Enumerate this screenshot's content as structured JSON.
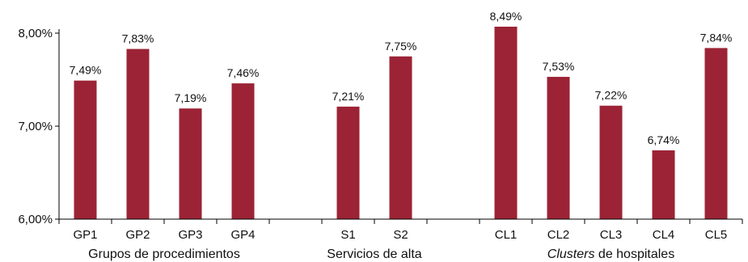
{
  "chart_data": {
    "type": "bar",
    "title": "",
    "xlabel": "",
    "ylabel": "",
    "ylim": [
      6.0,
      8.0
    ],
    "yticks": [
      "6,00%",
      "7,00%",
      "8,00%"
    ],
    "ytick_values": [
      6.0,
      7.0,
      8.0
    ],
    "grid": false,
    "bar_color": "#9B2335",
    "slots": [
      "GP1",
      "GP2",
      "GP3",
      "GP4",
      "",
      "S1",
      "S2",
      "",
      "CL1",
      "CL2",
      "CL3",
      "CL4",
      "CL5"
    ],
    "categories": [
      "GP1",
      "GP2",
      "GP3",
      "GP4",
      "S1",
      "S2",
      "CL1",
      "CL2",
      "CL3",
      "CL4",
      "CL5"
    ],
    "values": [
      7.49,
      7.83,
      7.19,
      7.46,
      7.21,
      7.75,
      8.49,
      7.53,
      7.22,
      6.74,
      7.84
    ],
    "value_labels": [
      "7,49%",
      "7,83%",
      "7,19%",
      "7,46%",
      "7,21%",
      "7,75%",
      "8,49%",
      "7,53%",
      "7,22%",
      "6,74%",
      "7,84%"
    ],
    "groups": [
      {
        "name_pre": "Grupos de procedimientos",
        "name_italic": "",
        "name_post": "",
        "categories": [
          "GP1",
          "GP2",
          "GP3",
          "GP4"
        ]
      },
      {
        "name_pre": "Servicios de alta",
        "name_italic": "",
        "name_post": "",
        "categories": [
          "S1",
          "S2"
        ]
      },
      {
        "name_pre": "",
        "name_italic": "Clusters",
        "name_post": " de hospitales",
        "categories": [
          "CL1",
          "CL2",
          "CL3",
          "CL4",
          "CL5"
        ]
      }
    ]
  }
}
